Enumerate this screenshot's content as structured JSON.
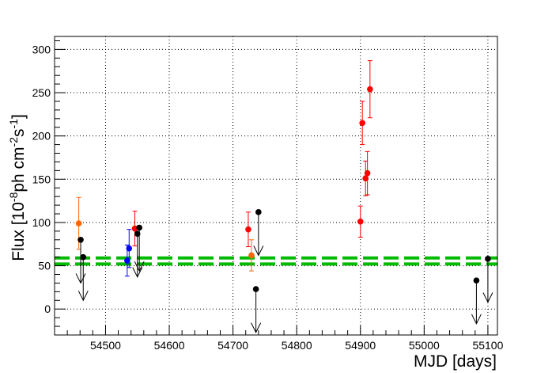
{
  "chart_data": {
    "type": "scatter",
    "title": "",
    "xlabel": "MJD [days]",
    "ylabel": {
      "prefix": "Flux [10",
      "exp1": "-8",
      "mid": "ph cm",
      "exp2": "-2",
      "mid2": "s",
      "exp3": "-1",
      "suffix": "]"
    },
    "xlim": [
      54420,
      55115
    ],
    "ylim": [
      -30,
      315
    ],
    "xticks": [
      54500,
      54600,
      54700,
      54800,
      54900,
      55000,
      55100
    ],
    "yticks": [
      0,
      50,
      100,
      150,
      200,
      250,
      300
    ],
    "grid": true,
    "colors": {
      "red": "#ff0000",
      "orange": "#ff6600",
      "blue": "#0000ff",
      "black": "#000000",
      "green": "#00bb00"
    },
    "series": [
      {
        "color": "red",
        "points": [
          {
            "x": 54546,
            "y": 93,
            "err": 20
          },
          {
            "x": 54724,
            "y": 92,
            "err": 20
          },
          {
            "x": 54900,
            "y": 101,
            "err": 18
          },
          {
            "x": 54903,
            "y": 215,
            "err": 25
          },
          {
            "x": 54908,
            "y": 151,
            "err": 20
          },
          {
            "x": 54911,
            "y": 157,
            "err": 25
          },
          {
            "x": 54915,
            "y": 254,
            "err": 33
          }
        ]
      },
      {
        "color": "orange",
        "points": [
          {
            "x": 54458,
            "y": 99,
            "err": 30
          },
          {
            "x": 54729,
            "y": 62,
            "err": 18
          }
        ]
      },
      {
        "color": "blue",
        "points": [
          {
            "x": 54534,
            "y": 56,
            "err": 18
          },
          {
            "x": 54537,
            "y": 70,
            "err": 22
          }
        ]
      },
      {
        "color": "black",
        "upper_limit": true,
        "points": [
          {
            "x": 54461,
            "y": 80
          },
          {
            "x": 54465,
            "y": 60
          },
          {
            "x": 54550,
            "y": 87
          },
          {
            "x": 54553,
            "y": 94
          },
          {
            "x": 54736,
            "y": 23
          },
          {
            "x": 54740,
            "y": 112
          },
          {
            "x": 55082,
            "y": 33
          },
          {
            "x": 55100,
            "y": 58
          }
        ]
      }
    ],
    "reference_lines": [
      {
        "y": 59,
        "color": "green",
        "style": "dashed"
      },
      {
        "y": 52,
        "color": "green",
        "style": "dashed"
      }
    ]
  }
}
